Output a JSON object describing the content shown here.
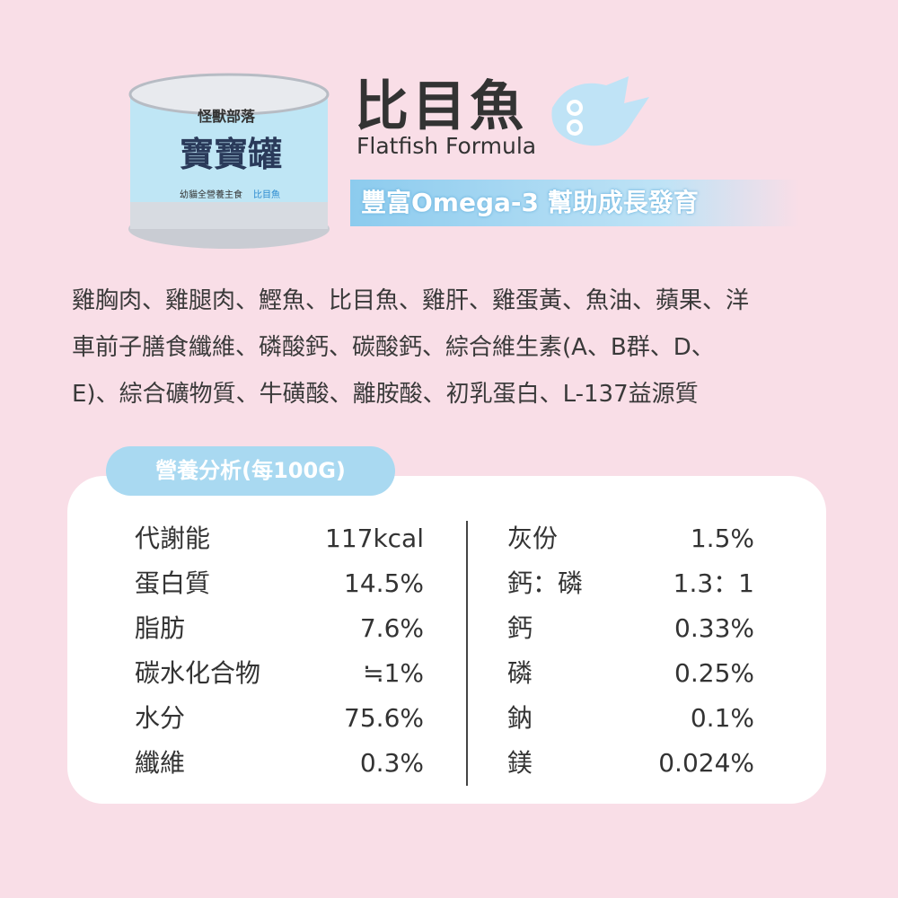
{
  "header": {
    "title": "比目魚",
    "subtitle": "Flatfish Formula",
    "tagline": "豐富Omega-3 幫助成長發育"
  },
  "can": {
    "brand": "怪獸部落",
    "name": "寶寶罐",
    "label": "幼貓全營養主食",
    "flavor": "比目魚"
  },
  "ingredients": [
    "雞胸肉、雞腿肉、鰹魚、比目魚、雞肝、雞蛋黃、魚油、蘋果、洋",
    "車前子膳食纖維、磷酸鈣、碳酸鈣、綜合維生素(A、B群、D、",
    "E)、綜合礦物質、牛磺酸、離胺酸、初乳蛋白、L-137益源質"
  ],
  "nutrition": {
    "title": "營養分析(每100G)",
    "left": [
      [
        "代謝能",
        "117kcal"
      ],
      [
        "蛋白質",
        "14.5%"
      ],
      [
        "脂肪",
        "7.6%"
      ],
      [
        "碳水化合物",
        "≒1%"
      ],
      [
        "水分",
        "75.6%"
      ],
      [
        "纖維",
        "0.3%"
      ]
    ],
    "right": [
      [
        "灰份",
        "1.5%"
      ],
      [
        "鈣：磷",
        "1.3：1"
      ],
      [
        "鈣",
        "0.33%"
      ],
      [
        "磷",
        "0.25%"
      ],
      [
        "鈉",
        "0.1%"
      ],
      [
        "鎂",
        "0.024%"
      ]
    ]
  }
}
